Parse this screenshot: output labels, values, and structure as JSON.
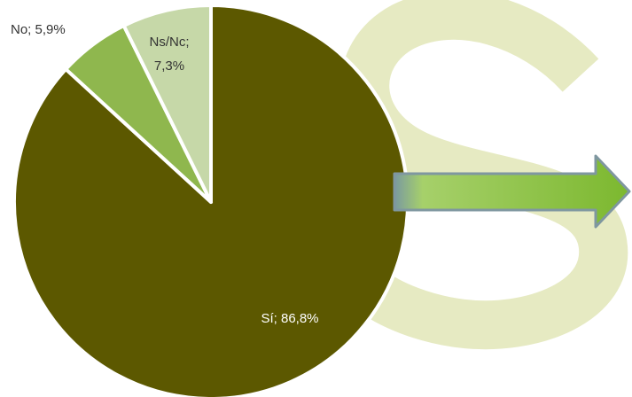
{
  "chart_data": {
    "type": "pie",
    "title": "",
    "start_angle_deg": 0,
    "direction": "clockwise",
    "slices": [
      {
        "name": "Sí",
        "value": 86.8,
        "label": "Sí; 86,8%",
        "color": "#5c5800",
        "label_color": "#ffffff"
      },
      {
        "name": "No",
        "value": 5.9,
        "label": "No; 5,9%",
        "color": "#8fb74e",
        "label_color": "#333333"
      },
      {
        "name": "Ns/Nc",
        "value": 7.3,
        "label_lines": [
          "Ns/Nc;",
          "7,3%"
        ],
        "color": "#c6d8a8",
        "label_color": "#333333"
      }
    ],
    "slice_border_color": "#ffffff",
    "legend": "none"
  },
  "decoration": {
    "background_letter_color": "#e6eac2",
    "arrow_fill_start": "#a6d06a",
    "arrow_fill_end": "#7cb82f",
    "arrow_shaft_start_color": "#7a9aa0"
  }
}
